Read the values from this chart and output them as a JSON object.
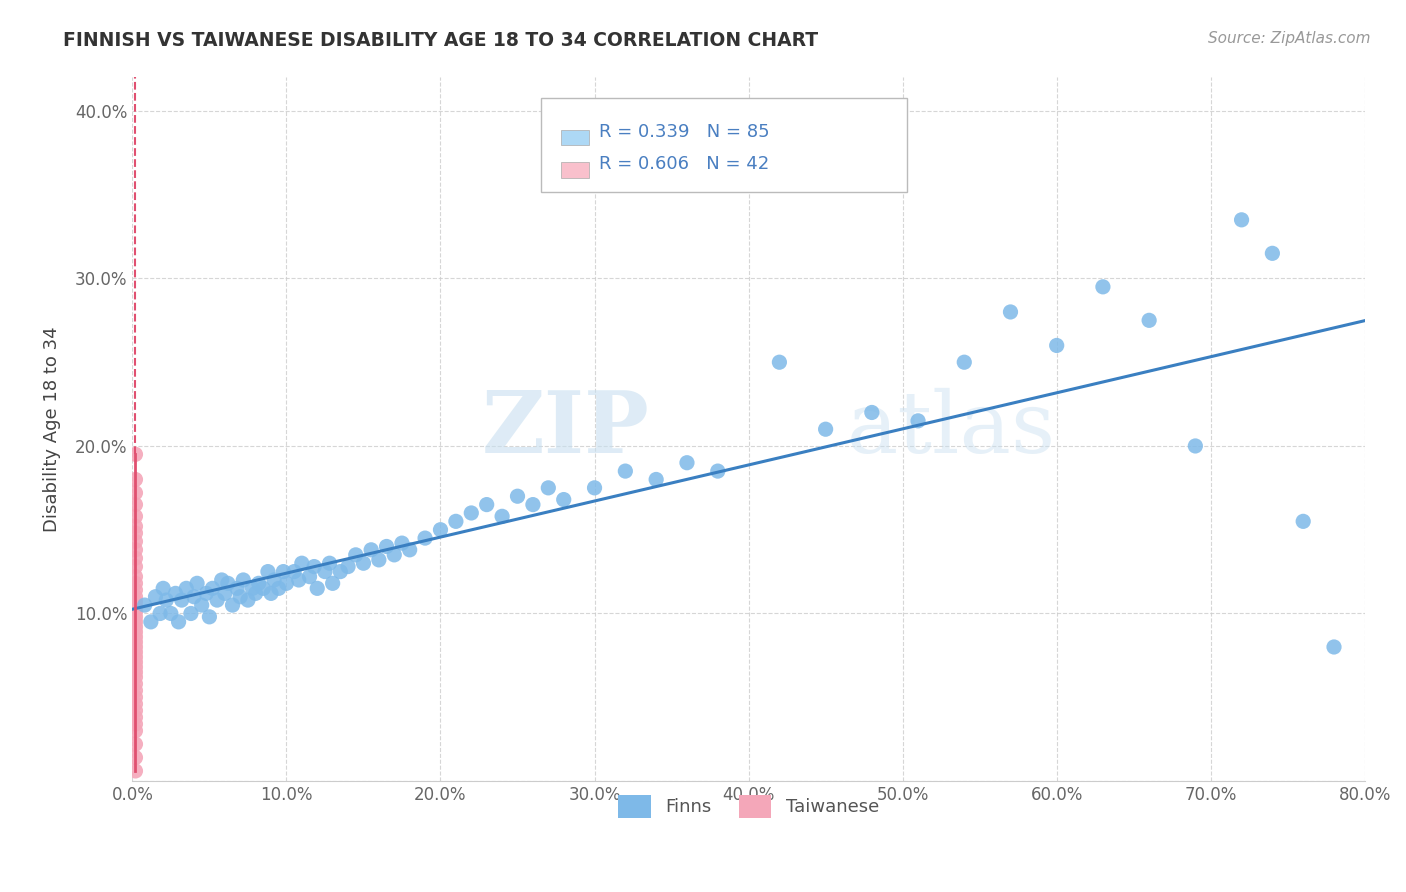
{
  "title": "FINNISH VS TAIWANESE DISABILITY AGE 18 TO 34 CORRELATION CHART",
  "source": "Source: ZipAtlas.com",
  "ylabel": "Disability Age 18 to 34",
  "xlim": [
    0.0,
    0.8
  ],
  "ylim": [
    0.0,
    0.42
  ],
  "x_ticks": [
    0.0,
    0.1,
    0.2,
    0.3,
    0.4,
    0.5,
    0.6,
    0.7,
    0.8
  ],
  "y_ticks": [
    0.0,
    0.1,
    0.2,
    0.3,
    0.4
  ],
  "x_tick_labels": [
    "0.0%",
    "10.0%",
    "20.0%",
    "30.0%",
    "40.0%",
    "50.0%",
    "60.0%",
    "70.0%",
    "80.0%"
  ],
  "y_tick_labels": [
    "",
    "10.0%",
    "20.0%",
    "30.0%",
    "40.0%"
  ],
  "finns_color": "#7EB9E8",
  "taiwanese_color": "#F4A7B9",
  "finns_line_color": "#3A7FC1",
  "taiwanese_line_color": "#E05070",
  "legend_finns_box": "#ADD8F5",
  "legend_taiwanese_box": "#F9C0CC",
  "R_finns": 0.339,
  "N_finns": 85,
  "R_taiwanese": 0.606,
  "N_taiwanese": 42,
  "legend_text_color": "#4A7FC1",
  "watermark_zip": "ZIP",
  "watermark_atlas": "atlas",
  "background_color": "#FFFFFF",
  "grid_color": "#CCCCCC",
  "finns_x": [
    0.008,
    0.012,
    0.015,
    0.018,
    0.02,
    0.022,
    0.025,
    0.028,
    0.03,
    0.032,
    0.035,
    0.038,
    0.04,
    0.042,
    0.045,
    0.048,
    0.05,
    0.052,
    0.055,
    0.058,
    0.06,
    0.062,
    0.065,
    0.068,
    0.07,
    0.072,
    0.075,
    0.078,
    0.08,
    0.082,
    0.085,
    0.088,
    0.09,
    0.092,
    0.095,
    0.098,
    0.1,
    0.105,
    0.108,
    0.11,
    0.115,
    0.118,
    0.12,
    0.125,
    0.128,
    0.13,
    0.135,
    0.14,
    0.145,
    0.15,
    0.155,
    0.16,
    0.165,
    0.17,
    0.175,
    0.18,
    0.19,
    0.2,
    0.21,
    0.22,
    0.23,
    0.24,
    0.25,
    0.26,
    0.27,
    0.28,
    0.3,
    0.32,
    0.34,
    0.36,
    0.38,
    0.42,
    0.45,
    0.48,
    0.51,
    0.54,
    0.57,
    0.6,
    0.63,
    0.66,
    0.69,
    0.72,
    0.74,
    0.76,
    0.78
  ],
  "finns_y": [
    0.105,
    0.095,
    0.11,
    0.1,
    0.115,
    0.108,
    0.1,
    0.112,
    0.095,
    0.108,
    0.115,
    0.1,
    0.11,
    0.118,
    0.105,
    0.112,
    0.098,
    0.115,
    0.108,
    0.12,
    0.112,
    0.118,
    0.105,
    0.115,
    0.11,
    0.12,
    0.108,
    0.115,
    0.112,
    0.118,
    0.115,
    0.125,
    0.112,
    0.12,
    0.115,
    0.125,
    0.118,
    0.125,
    0.12,
    0.13,
    0.122,
    0.128,
    0.115,
    0.125,
    0.13,
    0.118,
    0.125,
    0.128,
    0.135,
    0.13,
    0.138,
    0.132,
    0.14,
    0.135,
    0.142,
    0.138,
    0.145,
    0.15,
    0.155,
    0.16,
    0.165,
    0.158,
    0.17,
    0.165,
    0.175,
    0.168,
    0.175,
    0.185,
    0.18,
    0.19,
    0.185,
    0.25,
    0.21,
    0.22,
    0.215,
    0.25,
    0.28,
    0.26,
    0.295,
    0.275,
    0.2,
    0.335,
    0.315,
    0.155,
    0.08
  ],
  "taiwanese_x": [
    0.002,
    0.002,
    0.002,
    0.002,
    0.002,
    0.002,
    0.002,
    0.002,
    0.002,
    0.002,
    0.002,
    0.002,
    0.002,
    0.002,
    0.002,
    0.002,
    0.002,
    0.002,
    0.002,
    0.002,
    0.002,
    0.002,
    0.002,
    0.002,
    0.002,
    0.002,
    0.002,
    0.002,
    0.002,
    0.002,
    0.002,
    0.002,
    0.002,
    0.002,
    0.002,
    0.002,
    0.002,
    0.002,
    0.002,
    0.002,
    0.002,
    0.002
  ],
  "taiwanese_y": [
    0.195,
    0.18,
    0.172,
    0.165,
    0.158,
    0.152,
    0.148,
    0.143,
    0.138,
    0.133,
    0.128,
    0.122,
    0.118,
    0.114,
    0.11,
    0.107,
    0.104,
    0.101,
    0.098,
    0.095,
    0.092,
    0.089,
    0.086,
    0.083,
    0.08,
    0.077,
    0.074,
    0.071,
    0.068,
    0.065,
    0.062,
    0.058,
    0.054,
    0.05,
    0.046,
    0.042,
    0.038,
    0.034,
    0.03,
    0.022,
    0.014,
    0.006
  ]
}
